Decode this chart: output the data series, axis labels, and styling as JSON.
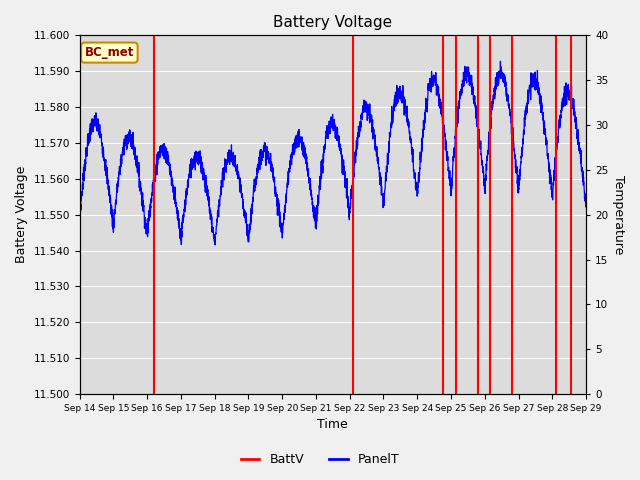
{
  "title": "Battery Voltage",
  "xlabel": "Time",
  "ylabel_left": "Battery Voltage",
  "ylabel_right": "Temperature",
  "ylim_left": [
    11.5,
    11.6
  ],
  "ylim_right": [
    0,
    40
  ],
  "fig_facecolor": "#f0f0f0",
  "plot_facecolor": "#dcdcdc",
  "legend_label1": "BattV",
  "legend_label2": "PanelT",
  "annotation_text": "BC_met",
  "x_tick_labels": [
    "Sep 14",
    "Sep 15",
    "Sep 16",
    "Sep 17",
    "Sep 18",
    "Sep 19",
    "Sep 20",
    "Sep 21",
    "Sep 22",
    "Sep 23",
    "Sep 24",
    "Sep 25",
    "Sep 26",
    "Sep 27",
    "Sep 28",
    "Sep 29"
  ],
  "red_vlines": [
    2.2,
    8.1,
    10.75,
    11.15,
    11.8,
    12.15,
    12.8,
    14.1,
    14.55
  ],
  "yticks_left": [
    11.5,
    11.51,
    11.52,
    11.53,
    11.54,
    11.55,
    11.56,
    11.57,
    11.58,
    11.59,
    11.6
  ],
  "yticks_right": [
    0,
    5,
    10,
    15,
    20,
    25,
    30,
    35,
    40
  ]
}
